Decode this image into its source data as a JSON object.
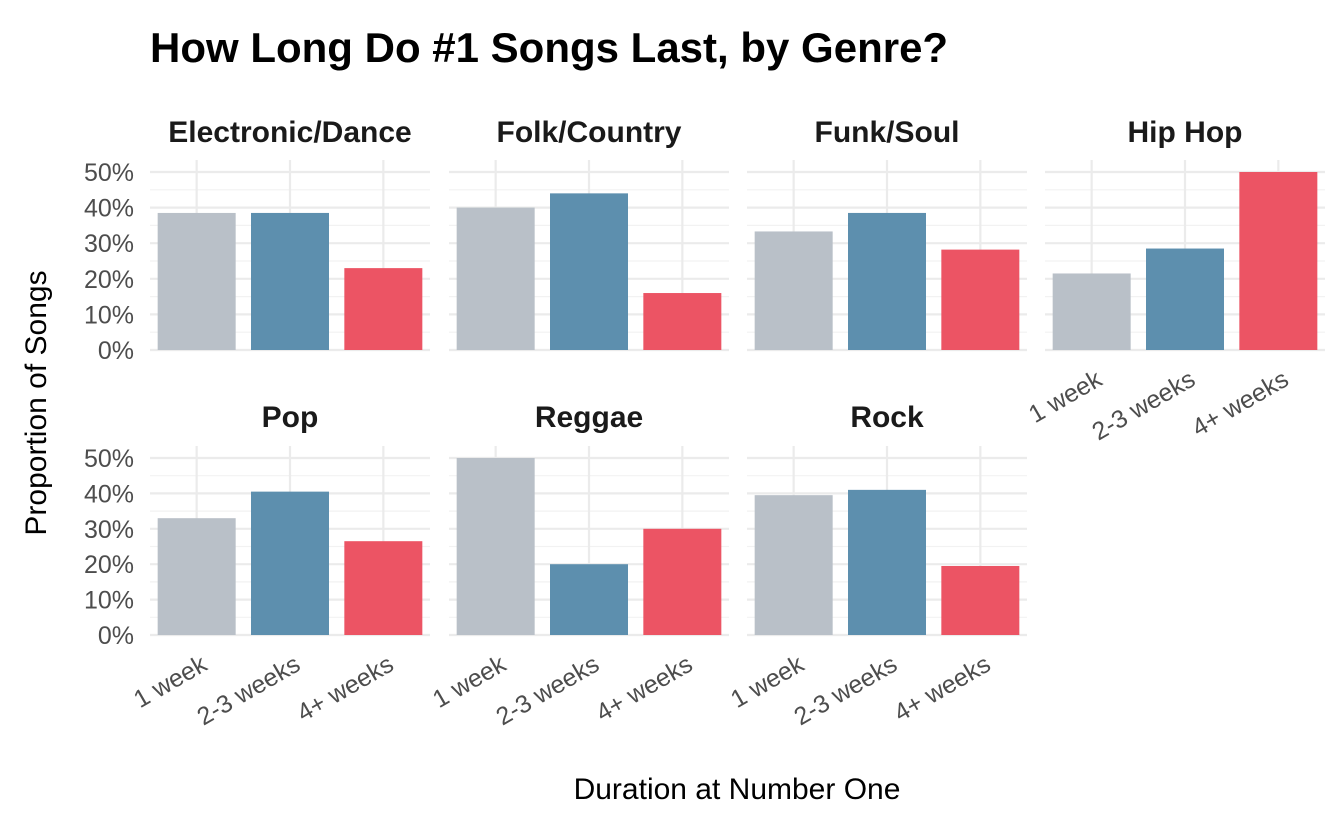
{
  "chart_data": {
    "type": "bar",
    "title": "How Long Do #1 Songs Last, by Genre?",
    "xlabel": "Duration at Number One",
    "ylabel": "Proportion of Songs",
    "categories": [
      "1 week",
      "2-3 weeks",
      "4+ weeks"
    ],
    "ylim": [
      0,
      0.5
    ],
    "yticks": [
      0,
      0.1,
      0.2,
      0.3,
      0.4,
      0.5
    ],
    "ytick_labels": [
      "0%",
      "10%",
      "20%",
      "30%",
      "40%",
      "50%"
    ],
    "grid": true,
    "legend": "none",
    "colors": {
      "1 week": "#b9c0c8",
      "2-3 weeks": "#5d8fae",
      "4+ weeks": "#ec5464"
    },
    "facets": [
      {
        "name": "Electronic/Dance",
        "values": [
          0.385,
          0.385,
          0.23
        ]
      },
      {
        "name": "Folk/Country",
        "values": [
          0.4,
          0.44,
          0.16
        ]
      },
      {
        "name": "Funk/Soul",
        "values": [
          0.333,
          0.385,
          0.282
        ]
      },
      {
        "name": "Hip Hop",
        "values": [
          0.215,
          0.285,
          0.5
        ]
      },
      {
        "name": "Pop",
        "values": [
          0.33,
          0.405,
          0.265
        ]
      },
      {
        "name": "Reggae",
        "values": [
          0.5,
          0.2,
          0.3
        ]
      },
      {
        "name": "Rock",
        "values": [
          0.395,
          0.41,
          0.195
        ]
      }
    ]
  }
}
